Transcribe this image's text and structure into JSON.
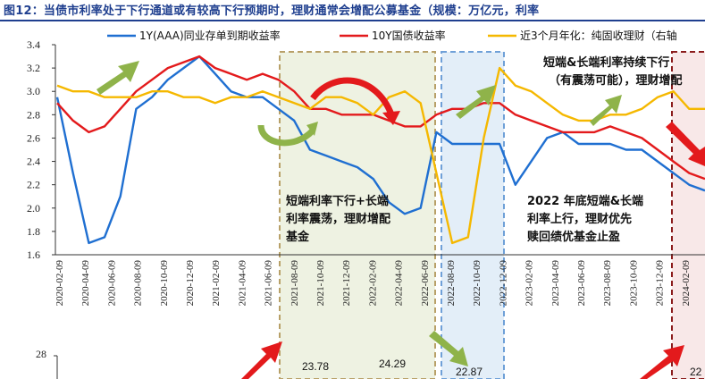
{
  "title": "图12：当债市利率处于下行通道或有较高下行预期时，理财通常会增配公募基金（规模：万亿元，利率",
  "legend": [
    {
      "name": "1Y(AAA)同业存单到期收益率",
      "color": "#1f6fd1"
    },
    {
      "name": "10Y国债收益率",
      "color": "#e31a1c"
    },
    {
      "name": "近3个月年化：纯固收理财（右轴",
      "color": "#f5b800"
    }
  ],
  "annotations": {
    "a1": [
      "短端利率下行+长端",
      "利率震荡，理财增配",
      "基金"
    ],
    "a2": [
      "2022 年底短端&长端",
      "利率上行，理财优先",
      "赎回绩优基金止盈"
    ],
    "a3": [
      "短端&长端利率持续下行",
      "（有震荡可能），理财增配"
    ]
  },
  "chart_data": {
    "type": "line",
    "title": "",
    "ylim": [
      1.6,
      3.4
    ],
    "yticks": [
      "1.6",
      "1.8",
      "2.0",
      "2.2",
      "2.4",
      "2.6",
      "2.8",
      "3.0",
      "3.2",
      "3.4"
    ],
    "x_ticks": [
      "2020-02-09",
      "2020-04-09",
      "2020-06-09",
      "2020-08-09",
      "2020-10-09",
      "2020-12-09",
      "2021-02-09",
      "2021-04-09",
      "2021-06-09",
      "2021-08-09",
      "2021-10-09",
      "2021-12-09",
      "2022-02-09",
      "2022-04-09",
      "2022-06-09",
      "2022-08-09",
      "2022-10-09",
      "2022-12-09",
      "2023-02-09",
      "2023-04-09",
      "2023-06-09",
      "2023-08-09",
      "2023-10-09",
      "2023-12-09",
      "2024-02-09",
      "2024-04-09"
    ],
    "series": [
      {
        "name": "1Y(AAA)同业存单到期收益率",
        "color": "#1f6fd1",
        "values": [
          2.95,
          2.3,
          1.7,
          1.75,
          2.1,
          2.85,
          2.95,
          3.1,
          3.2,
          3.3,
          3.15,
          3.0,
          2.95,
          2.95,
          2.85,
          2.75,
          2.5,
          2.45,
          2.4,
          2.35,
          2.25,
          2.05,
          1.95,
          2.0,
          2.65,
          2.55,
          2.55,
          2.55,
          2.55,
          2.2,
          2.4,
          2.6,
          2.65,
          2.55,
          2.55,
          2.55,
          2.5,
          2.5,
          2.4,
          2.3,
          2.2,
          2.15
        ]
      },
      {
        "name": "10Y国债收益率",
        "color": "#e31a1c",
        "values": [
          2.9,
          2.75,
          2.65,
          2.7,
          2.85,
          3.0,
          3.1,
          3.2,
          3.25,
          3.3,
          3.2,
          3.15,
          3.1,
          3.15,
          3.1,
          3.0,
          2.85,
          2.85,
          2.8,
          2.8,
          2.8,
          2.75,
          2.7,
          2.7,
          2.8,
          2.85,
          2.85,
          2.9,
          2.9,
          2.8,
          2.75,
          2.7,
          2.65,
          2.65,
          2.65,
          2.7,
          2.65,
          2.6,
          2.5,
          2.4,
          2.3,
          2.25
        ]
      },
      {
        "name": "近3个月年化：纯固收理财（右轴",
        "color": "#f5b800",
        "values": [
          3.05,
          3.0,
          3.0,
          2.95,
          2.95,
          2.95,
          3.0,
          3.0,
          2.95,
          2.95,
          2.9,
          2.95,
          2.95,
          3.0,
          2.95,
          2.9,
          2.85,
          2.95,
          2.95,
          2.9,
          2.8,
          2.95,
          3.0,
          2.9,
          2.3,
          1.7,
          1.75,
          2.6,
          3.2,
          3.05,
          3.0,
          2.9,
          2.8,
          2.75,
          2.75,
          2.8,
          2.8,
          2.85,
          2.95,
          3.0,
          2.85,
          2.85
        ]
      }
    ],
    "bottom_panel": {
      "ytick_top": "28",
      "labels": [
        "23.78",
        "24.29",
        "22.87",
        "22"
      ]
    }
  }
}
